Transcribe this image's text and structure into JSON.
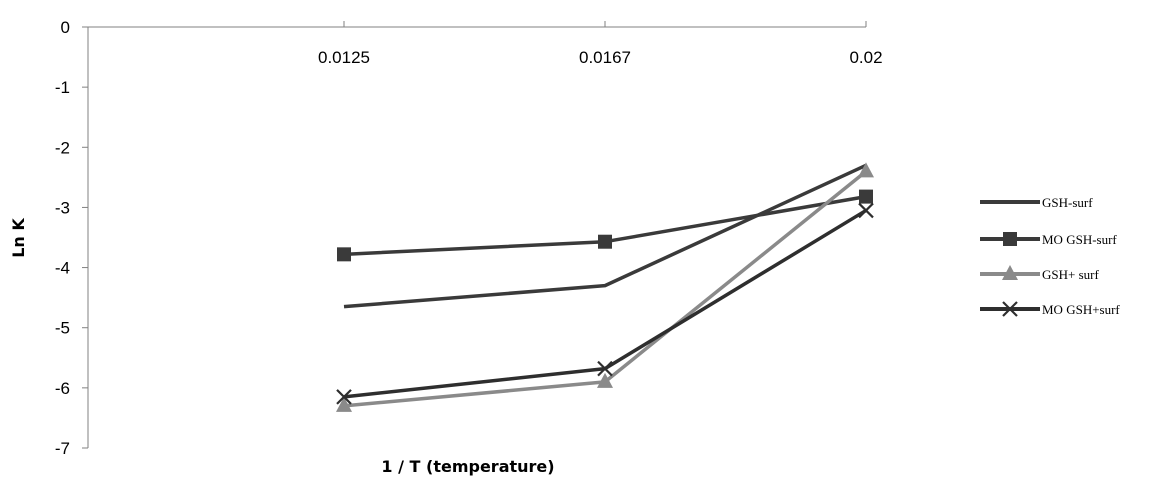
{
  "chart_data": {
    "type": "line",
    "title": "",
    "xlabel": "1 / T (temperature)",
    "ylabel": "Ln K",
    "categories": [
      "0.0125",
      "0.0167",
      "0.02"
    ],
    "ylim": [
      -7,
      0
    ],
    "yticks": [
      "0",
      "-1",
      "-2",
      "-3",
      "-4",
      "-5",
      "-6",
      "-7"
    ],
    "grid": false,
    "legend_position": "right",
    "series": [
      {
        "name": "GSH-surf",
        "values": [
          -4.65,
          -4.3,
          -2.3
        ],
        "color": "#3a3a3a",
        "marker": "none"
      },
      {
        "name": "MO GSH-surf",
        "values": [
          -3.78,
          -3.57,
          -2.82
        ],
        "color": "#3a3a3a",
        "marker": "square"
      },
      {
        "name": "GSH+ surf",
        "values": [
          -6.3,
          -5.9,
          -2.4
        ],
        "color": "#8a8a8a",
        "marker": "triangle"
      },
      {
        "name": "MO GSH+surf",
        "values": [
          -6.15,
          -5.68,
          -3.05
        ],
        "color": "#2e2e2e",
        "marker": "x"
      }
    ]
  }
}
